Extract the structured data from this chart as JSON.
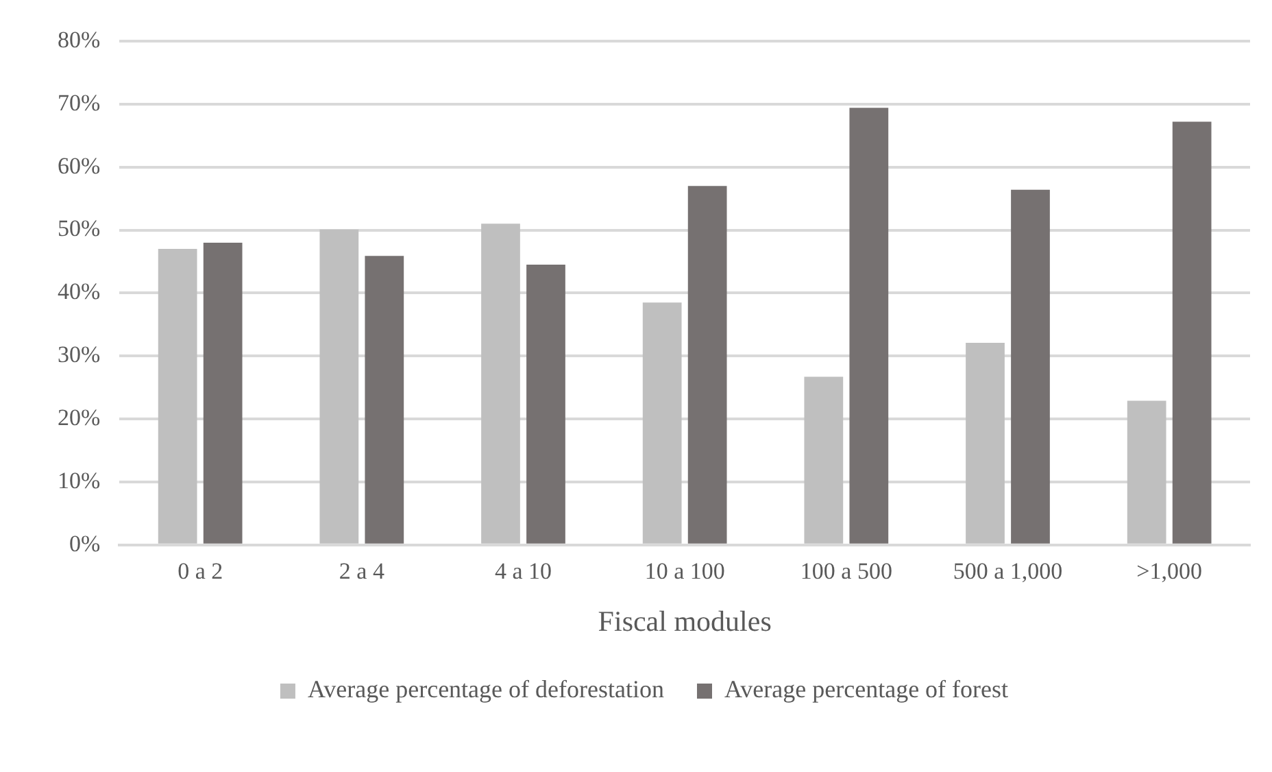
{
  "chart_data": {
    "type": "bar",
    "xlabel": "Fiscal modules",
    "categories": [
      "0 a 2",
      "2 a 4",
      "4 a 10",
      "10 a 100",
      "100 a 500",
      "500 a 1,000",
      ">1,000"
    ],
    "series": [
      {
        "name": "Average percentage of deforestation",
        "color": "#bfbfbf",
        "values": [
          47,
          50.1,
          51,
          38.5,
          26.7,
          32.1,
          22.9
        ]
      },
      {
        "name": "Average percentage of forest",
        "color": "#767171",
        "values": [
          48,
          45.9,
          44.5,
          57,
          69.4,
          56.4,
          67.2
        ]
      }
    ],
    "ylim": [
      0,
      80
    ],
    "yticks": [
      {
        "value": 0,
        "label": "0%"
      },
      {
        "value": 10,
        "label": "10%"
      },
      {
        "value": 20,
        "label": "20%"
      },
      {
        "value": 30,
        "label": "30%"
      },
      {
        "value": 40,
        "label": "40%"
      },
      {
        "value": 50,
        "label": "50%"
      },
      {
        "value": 60,
        "label": "60%"
      },
      {
        "value": 70,
        "label": "70%"
      },
      {
        "value": 80,
        "label": "80%"
      }
    ],
    "grid": "y",
    "legend": "bottom"
  }
}
